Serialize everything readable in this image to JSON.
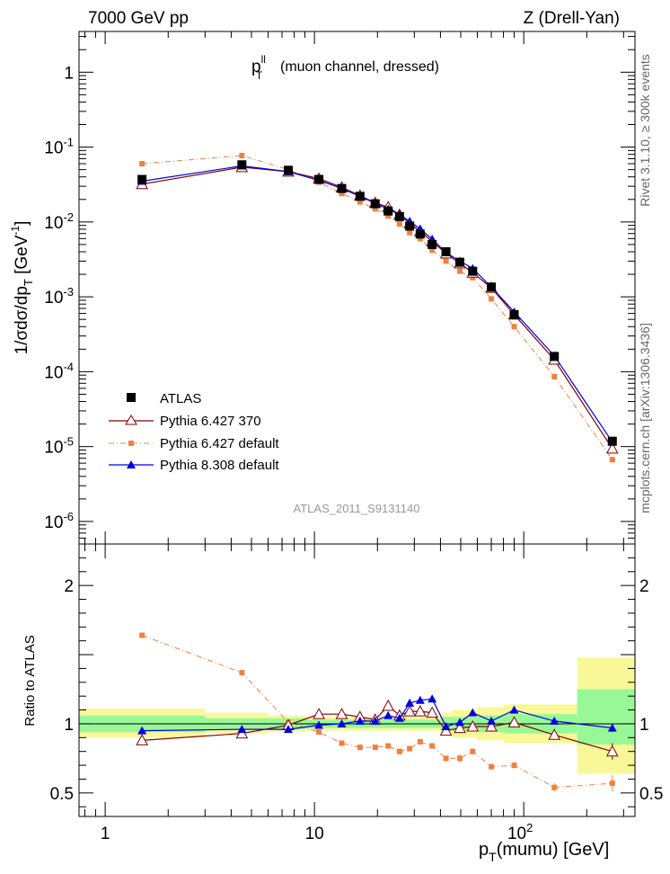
{
  "header": {
    "left": "7000 GeV pp",
    "right": "Z (Drell-Yan)"
  },
  "side_text": {
    "rivet": "Rivet 3.1.10, ≥ 300k events",
    "mcplots": "mcplots.cern.ch [arXiv:1306.3436]"
  },
  "analysis_id": "ATLAS_2011_S9131140",
  "colors": {
    "atlas": "#000000",
    "py6_370": "#800000",
    "py6_default": "#f08040",
    "py8": "#0000e0",
    "band_inner": "#98f898",
    "band_outer": "#f8f898"
  },
  "chart_data": [
    {
      "type": "line",
      "panel": "main",
      "title_main": "p",
      "title_sup": "ll",
      "title_sub": "T",
      "title_rest": "(muon channel, dressed)",
      "ylabel": "1/σdσ/dp",
      "ylabel_sub": "T",
      "ylabel_units": "[GeV",
      "ylabel_units_exp": "-1",
      "yscale": "log",
      "xscale": "log",
      "xlim": [
        0.75,
        340
      ],
      "ylim": [
        5e-07,
        3.5
      ],
      "y_ticks": [
        {
          "value": 1e-06,
          "label": "10",
          "exp": "-6"
        },
        {
          "value": 1e-05,
          "label": "10",
          "exp": "-5"
        },
        {
          "value": 0.0001,
          "label": "10",
          "exp": "-4"
        },
        {
          "value": 0.001,
          "label": "10",
          "exp": "-3"
        },
        {
          "value": 0.01,
          "label": "10",
          "exp": "-2"
        },
        {
          "value": 0.1,
          "label": "10",
          "exp": "-1"
        },
        {
          "value": 1,
          "label": "1",
          "exp": ""
        }
      ],
      "legend_position": "bottom-left",
      "series": [
        {
          "name": "ATLAS",
          "marker": "square",
          "x": [
            1.5,
            4.5,
            7.5,
            10.5,
            13.5,
            16.5,
            19.5,
            22.5,
            25.5,
            28.5,
            32,
            36.5,
            42.5,
            49.5,
            57,
            70,
            90,
            140,
            265
          ],
          "y": [
            0.037,
            0.058,
            0.049,
            0.037,
            0.028,
            0.022,
            0.0175,
            0.014,
            0.0118,
            0.0088,
            0.0069,
            0.005,
            0.004,
            0.0029,
            0.0022,
            0.00135,
            0.00058,
            0.00016,
            1.18e-05
          ]
        },
        {
          "name": "Pythia 6.427 370",
          "marker": "open-triangle",
          "x": [
            1.5,
            4.5,
            7.5,
            10.5,
            13.5,
            16.5,
            19.5,
            22.5,
            25.5,
            28.5,
            32,
            36.5,
            42.5,
            49.5,
            57,
            70,
            90,
            140,
            265
          ],
          "y": [
            0.032,
            0.054,
            0.047,
            0.038,
            0.029,
            0.0225,
            0.018,
            0.0158,
            0.0125,
            0.0096,
            0.0075,
            0.0055,
            0.0038,
            0.0028,
            0.0021,
            0.00132,
            0.00058,
            0.000145,
            9.4e-06
          ]
        },
        {
          "name": "Pythia 6.427 default",
          "marker": "small-square",
          "dash": "dash-dot",
          "x": [
            1.5,
            4.5,
            7.5,
            10.5,
            13.5,
            16.5,
            19.5,
            22.5,
            25.5,
            28.5,
            32,
            36.5,
            42.5,
            49.5,
            57,
            70,
            90,
            140,
            265
          ],
          "y": [
            0.06,
            0.077,
            0.05,
            0.034,
            0.024,
            0.0185,
            0.015,
            0.012,
            0.0094,
            0.0072,
            0.006,
            0.0042,
            0.003,
            0.0022,
            0.0018,
            0.00094,
            0.0004,
            8.6e-05,
            6.7e-06
          ]
        },
        {
          "name": "Pythia 8.308 default",
          "marker": "triangle",
          "x": [
            1.5,
            4.5,
            7.5,
            10.5,
            13.5,
            16.5,
            19.5,
            22.5,
            25.5,
            28.5,
            32,
            36.5,
            42.5,
            49.5,
            57,
            70,
            90,
            140,
            265
          ],
          "y": [
            0.035,
            0.056,
            0.047,
            0.036,
            0.028,
            0.022,
            0.0178,
            0.0148,
            0.0126,
            0.0102,
            0.0081,
            0.0059,
            0.0039,
            0.003,
            0.0024,
            0.00135,
            0.00063,
            0.000163,
            1.15e-05
          ]
        }
      ]
    },
    {
      "type": "line",
      "panel": "ratio",
      "ylabel": "Ratio to ATLAS",
      "xlabel": "p",
      "xlabel_sub": "T",
      "xlabel_rest": "(mumu) [GeV]",
      "xscale": "log",
      "yscale": "linear",
      "xlim": [
        0.75,
        340
      ],
      "ylim": [
        0.33,
        2.3
      ],
      "x_ticks": [
        {
          "value": 1,
          "label": "1",
          "exp": ""
        },
        {
          "value": 10,
          "label": "10",
          "exp": ""
        },
        {
          "value": 100,
          "label": "10",
          "exp": "2"
        }
      ],
      "y_ticks": [
        {
          "value": 0.5,
          "label": "0.5"
        },
        {
          "value": 1,
          "label": "1"
        },
        {
          "value": 2,
          "label": "2"
        }
      ],
      "bands": [
        {
          "x0": 0.75,
          "x1": 3.0,
          "outer": [
            0.9,
            1.11
          ],
          "inner": [
            0.94,
            1.06
          ]
        },
        {
          "x0": 3.0,
          "x1": 6.0,
          "outer": [
            0.93,
            1.08
          ],
          "inner": [
            0.96,
            1.04
          ]
        },
        {
          "x0": 6.0,
          "x1": 9.0,
          "outer": [
            0.94,
            1.06
          ],
          "inner": [
            0.96,
            1.04
          ]
        },
        {
          "x0": 9.0,
          "x1": 40.0,
          "outer": [
            0.95,
            1.05
          ],
          "inner": [
            0.97,
            1.03
          ]
        },
        {
          "x0": 40.0,
          "x1": 45.0,
          "outer": [
            0.92,
            1.08
          ],
          "inner": [
            0.95,
            1.05
          ]
        },
        {
          "x0": 45.0,
          "x1": 60.0,
          "outer": [
            0.9,
            1.1
          ],
          "inner": [
            0.95,
            1.05
          ]
        },
        {
          "x0": 60.0,
          "x1": 80.0,
          "outer": [
            0.88,
            1.12
          ],
          "inner": [
            0.94,
            1.06
          ]
        },
        {
          "x0": 80.0,
          "x1": 180.0,
          "outer": [
            0.86,
            1.14
          ],
          "inner": [
            0.93,
            1.07
          ]
        },
        {
          "x0": 180.0,
          "x1": 340.0,
          "outer": [
            0.64,
            1.48
          ],
          "inner": [
            0.85,
            1.25
          ]
        }
      ],
      "series": [
        {
          "name": "Pythia 6.427 370",
          "x": [
            1.5,
            4.5,
            7.5,
            10.5,
            13.5,
            16.5,
            19.5,
            22.5,
            25.5,
            28.5,
            32,
            36.5,
            42.5,
            49.5,
            57,
            70,
            90,
            140,
            265
          ],
          "y": [
            0.88,
            0.93,
            0.99,
            1.07,
            1.07,
            1.05,
            1.03,
            1.13,
            1.06,
            1.09,
            1.09,
            1.08,
            0.95,
            0.97,
            0.98,
            0.98,
            1.01,
            0.92,
            0.8
          ],
          "err": [
            0,
            0,
            0,
            0,
            0,
            0,
            0,
            0,
            0,
            0,
            0,
            0,
            0,
            0,
            0,
            0,
            0,
            0.03,
            0.06
          ]
        },
        {
          "name": "Pythia 6.427 default",
          "x": [
            1.5,
            4.5,
            7.5,
            10.5,
            13.5,
            16.5,
            19.5,
            22.5,
            25.5,
            28.5,
            32,
            36.5,
            42.5,
            49.5,
            57,
            70,
            90,
            140,
            265
          ],
          "y": [
            1.64,
            1.37,
            1.01,
            0.94,
            0.86,
            0.83,
            0.83,
            0.84,
            0.8,
            0.82,
            0.87,
            0.84,
            0.75,
            0.75,
            0.8,
            0.69,
            0.7,
            0.54,
            0.57
          ],
          "err": [
            0,
            0,
            0,
            0,
            0,
            0,
            0,
            0,
            0.02,
            0,
            0,
            0,
            0.02,
            0.03,
            0.02,
            0,
            0.02,
            0.03,
            0.06
          ]
        },
        {
          "name": "Pythia 8.308 default",
          "x": [
            1.5,
            4.5,
            7.5,
            10.5,
            13.5,
            16.5,
            19.5,
            22.5,
            25.5,
            28.5,
            32,
            36.5,
            42.5,
            49.5,
            57,
            70,
            90,
            140,
            265
          ],
          "y": [
            0.95,
            0.96,
            0.96,
            0.99,
            1.0,
            1.02,
            1.02,
            1.06,
            1.04,
            1.15,
            1.17,
            1.18,
            0.98,
            1.01,
            1.08,
            1.02,
            1.1,
            1.02,
            0.97
          ],
          "err": [
            0,
            0,
            0,
            0,
            0,
            0,
            0,
            0,
            0,
            0,
            0,
            0,
            0,
            0,
            0,
            0,
            0,
            0,
            0.03
          ]
        }
      ]
    }
  ]
}
